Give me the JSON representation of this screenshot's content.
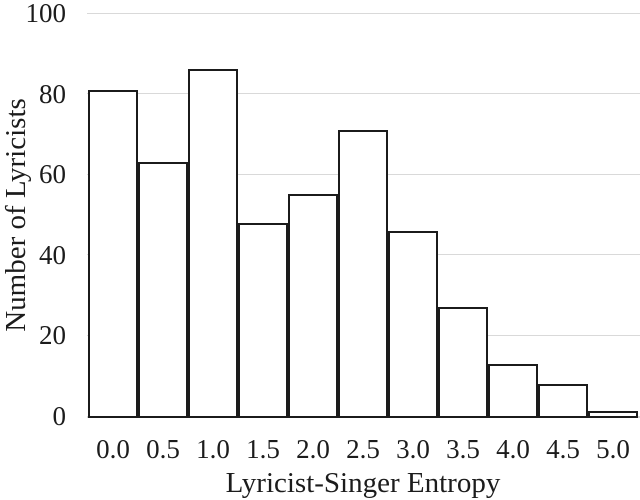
{
  "chart_data": {
    "type": "bar",
    "subtype": "histogram",
    "title": "",
    "xlabel": "Lyricist-Singer Entropy",
    "ylabel": "Number of Lyricists",
    "categories": [
      "0.0",
      "0.5",
      "1.0",
      "1.5",
      "2.0",
      "2.5",
      "3.0",
      "3.5",
      "4.0",
      "4.5",
      "5.0"
    ],
    "values": [
      81,
      63,
      86,
      48,
      55,
      71,
      46,
      27,
      13,
      8,
      1
    ],
    "ylim": [
      0,
      100
    ],
    "yticks": [
      0,
      20,
      40,
      60,
      80,
      100
    ],
    "grid": "horizontal-only",
    "legend": "none",
    "bar_gap": 0,
    "colors": {
      "background": "#ffffff",
      "bar_fill": "#ffffff",
      "bar_border": "#1b1b1b",
      "gridline": "#d9d9d9",
      "axis_line": "#d6d6d6",
      "text": "#1c1c1c"
    }
  }
}
